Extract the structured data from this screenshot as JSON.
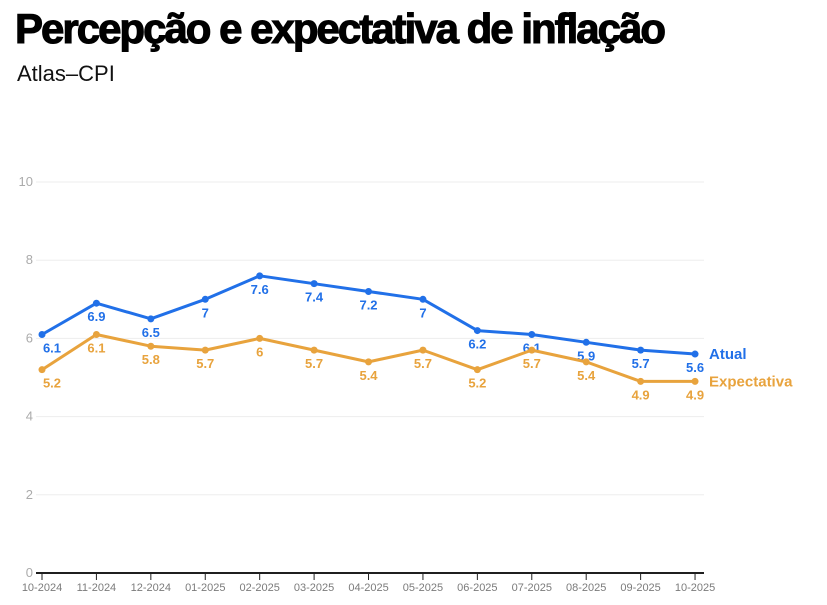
{
  "header": {
    "title": "Percepção e expectativa de inflação",
    "subtitle": "Atlas–CPI"
  },
  "chart_data": {
    "type": "line",
    "title": "Percepção e expectativa de inflação",
    "subtitle": "Atlas–CPI",
    "categories": [
      "10-2024",
      "11-2024",
      "12-2024",
      "01-2025",
      "02-2025",
      "03-2025",
      "04-2025",
      "05-2025",
      "06-2025",
      "07-2025",
      "08-2025",
      "09-2025",
      "10-2025"
    ],
    "series": [
      {
        "name": "Atual",
        "color": "#2170e8",
        "values": [
          6.1,
          6.9,
          6.5,
          7,
          7.6,
          7.4,
          7.2,
          7,
          6.2,
          6.1,
          5.9,
          5.7,
          5.6
        ]
      },
      {
        "name": "Expectativa",
        "color": "#e8a33d",
        "values": [
          5.2,
          6.1,
          5.8,
          5.7,
          6,
          5.7,
          5.4,
          5.7,
          5.2,
          5.7,
          5.4,
          4.9,
          4.9
        ]
      }
    ],
    "xlabel": "",
    "ylabel": "",
    "ylim": [
      0,
      10
    ],
    "yticks": [
      0,
      2,
      4,
      6,
      8,
      10
    ],
    "grid": true,
    "legend_position": "right-of-last-point",
    "data_labels": "below-points",
    "colors": {
      "grid": "#ededed",
      "axis": "#1f1f1f",
      "x_labels": "#7b7b7b",
      "y_labels": "#ababab"
    }
  }
}
